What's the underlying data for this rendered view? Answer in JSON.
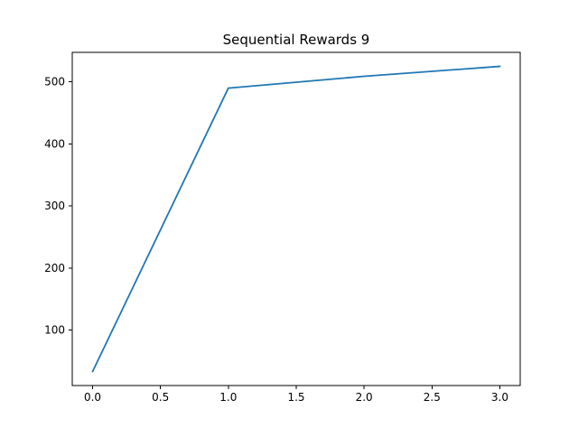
{
  "chart_data": {
    "type": "line",
    "title": "Sequential Rewards 9",
    "xlabel": "",
    "ylabel": "",
    "x": [
      0,
      1,
      2,
      3
    ],
    "series": [
      {
        "values": [
          33,
          490,
          509,
          525
        ],
        "color": "#1f77b4"
      }
    ],
    "xlim": [
      -0.15,
      3.15
    ],
    "ylim": [
      10.4,
      547.6
    ],
    "xticks": [
      0.0,
      0.5,
      1.0,
      1.5,
      2.0,
      2.5,
      3.0
    ],
    "xtick_labels": [
      "0.0",
      "0.5",
      "1.0",
      "1.5",
      "2.0",
      "2.5",
      "3.0"
    ],
    "yticks": [
      100,
      200,
      300,
      400,
      500
    ],
    "ytick_labels": [
      "100",
      "200",
      "300",
      "400",
      "500"
    ],
    "grid": false,
    "legend": "none"
  }
}
